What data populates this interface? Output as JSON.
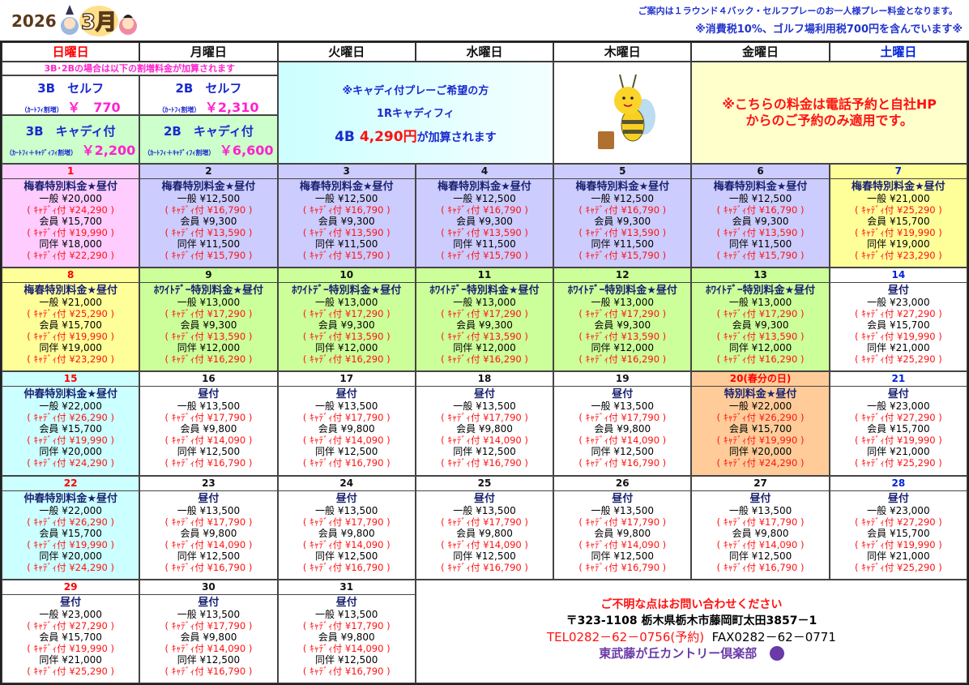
{
  "header": {
    "year": "2026",
    "month": "3月",
    "note1": "ご案内は１ラウンド４バック・セルフプレーのお一人様プレー料金となります。",
    "note2": "※消費税10%、ゴルフ場利用税700円を含んでいます※"
  },
  "weekdays": [
    {
      "label": "日曜日",
      "color": "#ff0000"
    },
    {
      "label": "月曜日",
      "color": "#111"
    },
    {
      "label": "火曜日",
      "color": "#111"
    },
    {
      "label": "水曜日",
      "color": "#111"
    },
    {
      "label": "木曜日",
      "color": "#111"
    },
    {
      "label": "金曜日",
      "color": "#111"
    },
    {
      "label": "土曜日",
      "color": "#0022dd"
    }
  ],
  "surcharge": {
    "note": "3B･2Bの場合は以下の割増料金が加算されます",
    "b3_self": {
      "title": "3B　セルフ",
      "sub": "（ｶｰﾄﾌｨ割増）",
      "price": "￥　770"
    },
    "b2_self": {
      "title": "2B　セルフ",
      "sub": "（ｶｰﾄﾌｨ割増）",
      "price": "￥2,310"
    },
    "b3_caddy": {
      "title": "3B　キャディ付",
      "sub": "（ｶｰﾄﾌｨ＋ｷｬﾃﾞｨﾌｨ割増）",
      "price": "￥2,200"
    },
    "b2_caddy": {
      "title": "2B　キャディ付",
      "sub": "（ｶｰﾄﾌｨ＋ｷｬﾃﾞｨﾌｨ割増）",
      "price": "￥6,600"
    }
  },
  "caddy_info": {
    "line1": "※キャディ付プレーご希望の方",
    "line2": "1Rキャディフィ",
    "line3a": "4B ",
    "line3b": "4,290円",
    "line3c": "が加算されます"
  },
  "reservation_note": {
    "line1": "※こちらの料金は電話予約と自社HP",
    "line2": "からのご予約のみ適用です。"
  },
  "labels": {
    "general": "一般",
    "member": "会員",
    "companion": "同伴",
    "caddy_open": "( ｷｬﾃﾞｨ付",
    "caddy_close": ")"
  },
  "colors": {
    "pink": "#ffccff",
    "lavender": "#ccccff",
    "yellow": "#ffff99",
    "green": "#ccff99",
    "cyan": "#ccffff",
    "orange": "#ffcc99",
    "white": "#ffffff",
    "sunday": "#ff0000",
    "saturday": "#0022dd"
  },
  "cells": [
    {
      "day": "1",
      "bg": "pink",
      "dc": "sunday",
      "title": "梅春特別料金★昼付",
      "p": [
        "¥20,000",
        "¥24,290",
        "¥15,700",
        "¥19,990",
        "¥18,000",
        "¥22,290"
      ]
    },
    {
      "day": "2",
      "bg": "lavender",
      "title": "梅春特別料金★昼付",
      "p": [
        "¥12,500",
        "¥16,790",
        "¥9,300",
        "¥13,590",
        "¥11,500",
        "¥15,790"
      ]
    },
    {
      "day": "3",
      "bg": "lavender",
      "title": "梅春特別料金★昼付",
      "p": [
        "¥12,500",
        "¥16,790",
        "¥9,300",
        "¥13,590",
        "¥11,500",
        "¥15,790"
      ]
    },
    {
      "day": "4",
      "bg": "lavender",
      "title": "梅春特別料金★昼付",
      "p": [
        "¥12,500",
        "¥16,790",
        "¥9,300",
        "¥13,590",
        "¥11,500",
        "¥15,790"
      ]
    },
    {
      "day": "5",
      "bg": "lavender",
      "title": "梅春特別料金★昼付",
      "p": [
        "¥12,500",
        "¥16,790",
        "¥9,300",
        "¥13,590",
        "¥11,500",
        "¥15,790"
      ]
    },
    {
      "day": "6",
      "bg": "lavender",
      "title": "梅春特別料金★昼付",
      "p": [
        "¥12,500",
        "¥16,790",
        "¥9,300",
        "¥13,590",
        "¥11,500",
        "¥15,790"
      ]
    },
    {
      "day": "7",
      "bg": "yellow",
      "dc": "saturday",
      "title": "梅春特別料金★昼付",
      "p": [
        "¥21,000",
        "¥25,290",
        "¥15,700",
        "¥19,990",
        "¥19,000",
        "¥23,290"
      ]
    },
    {
      "day": "8",
      "bg": "yellow",
      "dc": "sunday",
      "title": "梅春特別料金★昼付",
      "p": [
        "¥21,000",
        "¥25,290",
        "¥15,700",
        "¥19,990",
        "¥19,000",
        "¥23,290"
      ]
    },
    {
      "day": "9",
      "bg": "green",
      "title": "ﾎﾜｲﾄﾃﾞｰ特別料金★昼付",
      "p": [
        "¥13,000",
        "¥17,290",
        "¥9,300",
        "¥13,590",
        "¥12,000",
        "¥16,290"
      ]
    },
    {
      "day": "10",
      "bg": "green",
      "title": "ﾎﾜｲﾄﾃﾞｰ特別料金★昼付",
      "p": [
        "¥13,000",
        "¥17,290",
        "¥9,300",
        "¥13,590",
        "¥12,000",
        "¥16,290"
      ]
    },
    {
      "day": "11",
      "bg": "green",
      "title": "ﾎﾜｲﾄﾃﾞｰ特別料金★昼付",
      "p": [
        "¥13,000",
        "¥17,290",
        "¥9,300",
        "¥13,590",
        "¥12,000",
        "¥16,290"
      ]
    },
    {
      "day": "12",
      "bg": "green",
      "title": "ﾎﾜｲﾄﾃﾞｰ特別料金★昼付",
      "p": [
        "¥13,000",
        "¥17,290",
        "¥9,300",
        "¥13,590",
        "¥12,000",
        "¥16,290"
      ]
    },
    {
      "day": "13",
      "bg": "green",
      "title": "ﾎﾜｲﾄﾃﾞｰ特別料金★昼付",
      "p": [
        "¥13,000",
        "¥17,290",
        "¥9,300",
        "¥13,590",
        "¥12,000",
        "¥16,290"
      ]
    },
    {
      "day": "14",
      "bg": "white",
      "dc": "saturday",
      "title": "昼付",
      "p": [
        "¥23,000",
        "¥27,290",
        "¥15,700",
        "¥19,990",
        "¥21,000",
        "¥25,290"
      ]
    },
    {
      "day": "15",
      "bg": "cyan",
      "dc": "sunday",
      "title": "仲春特別料金★昼付",
      "p": [
        "¥22,000",
        "¥26,290",
        "¥15,700",
        "¥19,990",
        "¥20,000",
        "¥24,290"
      ]
    },
    {
      "day": "16",
      "bg": "white",
      "title": "昼付",
      "p": [
        "¥13,500",
        "¥17,790",
        "¥9,800",
        "¥14,090",
        "¥12,500",
        "¥16,790"
      ]
    },
    {
      "day": "17",
      "bg": "white",
      "title": "昼付",
      "p": [
        "¥13,500",
        "¥17,790",
        "¥9,800",
        "¥14,090",
        "¥12,500",
        "¥16,790"
      ]
    },
    {
      "day": "18",
      "bg": "white",
      "title": "昼付",
      "p": [
        "¥13,500",
        "¥17,790",
        "¥9,800",
        "¥14,090",
        "¥12,500",
        "¥16,790"
      ]
    },
    {
      "day": "19",
      "bg": "white",
      "title": "昼付",
      "p": [
        "¥13,500",
        "¥17,790",
        "¥9,800",
        "¥14,090",
        "¥12,500",
        "¥16,790"
      ]
    },
    {
      "day": "20(春分の日)",
      "bg": "orange",
      "dc": "sunday",
      "title": "特別料金★昼付",
      "p": [
        "¥22,000",
        "¥26,290",
        "¥15,700",
        "¥19,990",
        "¥20,000",
        "¥24,290"
      ]
    },
    {
      "day": "21",
      "bg": "white",
      "dc": "saturday",
      "title": "昼付",
      "p": [
        "¥23,000",
        "¥27,290",
        "¥15,700",
        "¥19,990",
        "¥21,000",
        "¥25,290"
      ]
    },
    {
      "day": "22",
      "bg": "cyan",
      "dc": "sunday",
      "title": "仲春特別料金★昼付",
      "p": [
        "¥22,000",
        "¥26,290",
        "¥15,700",
        "¥19,990",
        "¥20,000",
        "¥24,290"
      ]
    },
    {
      "day": "23",
      "bg": "white",
      "title": "昼付",
      "p": [
        "¥13,500",
        "¥17,790",
        "¥9,800",
        "¥14,090",
        "¥12,500",
        "¥16,790"
      ]
    },
    {
      "day": "24",
      "bg": "white",
      "title": "昼付",
      "p": [
        "¥13,500",
        "¥17,790",
        "¥9,800",
        "¥14,090",
        "¥12,500",
        "¥16,790"
      ]
    },
    {
      "day": "25",
      "bg": "white",
      "title": "昼付",
      "p": [
        "¥13,500",
        "¥17,790",
        "¥9,800",
        "¥14,090",
        "¥12,500",
        "¥16,790"
      ]
    },
    {
      "day": "26",
      "bg": "white",
      "title": "昼付",
      "p": [
        "¥13,500",
        "¥17,790",
        "¥9,800",
        "¥14,090",
        "¥12,500",
        "¥16,790"
      ]
    },
    {
      "day": "27",
      "bg": "white",
      "title": "昼付",
      "p": [
        "¥13,500",
        "¥17,790",
        "¥9,800",
        "¥14,090",
        "¥12,500",
        "¥16,790"
      ]
    },
    {
      "day": "28",
      "bg": "white",
      "dc": "saturday",
      "title": "昼付",
      "p": [
        "¥23,000",
        "¥27,290",
        "¥15,700",
        "¥19,990",
        "¥21,000",
        "¥25,290"
      ]
    },
    {
      "day": "29",
      "bg": "white",
      "dc": "sunday",
      "title": "昼付",
      "p": [
        "¥23,000",
        "¥27,290",
        "¥15,700",
        "¥19,990",
        "¥21,000",
        "¥25,290"
      ]
    },
    {
      "day": "30",
      "bg": "white",
      "title": "昼付",
      "p": [
        "¥13,500",
        "¥17,790",
        "¥9,800",
        "¥14,090",
        "¥12,500",
        "¥16,790"
      ]
    },
    {
      "day": "31",
      "bg": "white",
      "title": "昼付",
      "p": [
        "¥13,500",
        "¥17,790",
        "¥9,800",
        "¥14,090",
        "¥12,500",
        "¥16,790"
      ]
    }
  ],
  "footer": {
    "inquiry": "ご不明な点はお問い合わせください",
    "address": "〒323-1108 栃木県栃木市藤岡町太田3857－1",
    "tel": "TEL0282－62－0756(予約)",
    "fax": "FAX0282－62－0771",
    "club": "東武藤が丘カントリー倶楽部"
  }
}
